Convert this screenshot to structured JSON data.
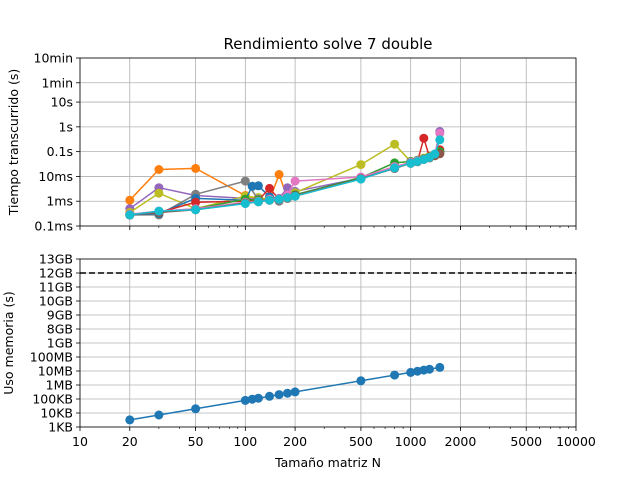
{
  "chart_data": [
    {
      "type": "line",
      "title": "Rendimiento solve 7 double",
      "xlabel": "",
      "ylabel": "Tiempo transcurrido (s)",
      "x_scale": "log",
      "y_scale": "log",
      "xlim": [
        10,
        10000
      ],
      "ylim": [
        0.0001,
        600
      ],
      "grid": true,
      "x_ticks": [
        {
          "value": 10,
          "label": "10"
        },
        {
          "value": 20,
          "label": "20"
        },
        {
          "value": 50,
          "label": "50"
        },
        {
          "value": 100,
          "label": "100"
        },
        {
          "value": 200,
          "label": "200"
        },
        {
          "value": 500,
          "label": "500"
        },
        {
          "value": 1000,
          "label": "1000"
        },
        {
          "value": 2000,
          "label": "2000"
        },
        {
          "value": 5000,
          "label": "5000"
        },
        {
          "value": 10000,
          "label": "10000"
        }
      ],
      "y_ticks": [
        {
          "value": 0.0001,
          "label": "0.1ms"
        },
        {
          "value": 0.001,
          "label": "1ms"
        },
        {
          "value": 0.01,
          "label": "10ms"
        },
        {
          "value": 0.1,
          "label": "0.1s"
        },
        {
          "value": 1,
          "label": "1s"
        },
        {
          "value": 10,
          "label": "10s"
        },
        {
          "value": 60,
          "label": "1min"
        },
        {
          "value": 600,
          "label": "10min"
        }
      ],
      "series": [
        {
          "color": "#ff7f0e",
          "x": [
            20,
            30,
            50,
            100,
            120,
            140,
            160,
            180,
            200,
            500,
            800,
            1000,
            1100,
            1200,
            1300,
            1400,
            1500
          ],
          "y": [
            0.0011,
            0.019,
            0.021,
            0.0017,
            0.0012,
            0.0011,
            0.012,
            0.0013,
            0.0017,
            0.0085,
            0.022,
            0.035,
            0.04,
            0.05,
            0.058,
            0.07,
            0.085
          ]
        },
        {
          "color": "#9467bd",
          "x": [
            20,
            30,
            50,
            100,
            120,
            140,
            160,
            180,
            200,
            500,
            800,
            1000,
            1100,
            1200,
            1300,
            1400,
            1500
          ],
          "y": [
            0.0005,
            0.0035,
            0.0017,
            0.0013,
            0.0012,
            0.0012,
            0.0013,
            0.0035,
            0.0025,
            0.0085,
            0.022,
            0.035,
            0.04,
            0.05,
            0.06,
            0.075,
            0.65
          ]
        },
        {
          "color": "#bcbd22",
          "x": [
            20,
            30,
            50,
            100,
            120,
            140,
            160,
            180,
            200,
            500,
            800,
            1000,
            1100,
            1200,
            1300,
            1400,
            1500
          ],
          "y": [
            0.00035,
            0.0021,
            0.0005,
            0.0016,
            0.0014,
            0.0012,
            0.0012,
            0.0015,
            0.0022,
            0.03,
            0.2,
            0.04,
            0.045,
            0.055,
            0.065,
            0.075,
            0.09
          ]
        },
        {
          "color": "#7f7f7f",
          "x": [
            20,
            30,
            50,
            100,
            120,
            140,
            160,
            180,
            200,
            500,
            800,
            1000,
            1100,
            1200,
            1300,
            1400,
            1500
          ],
          "y": [
            0.00028,
            0.00028,
            0.0019,
            0.0065,
            0.0012,
            0.0011,
            0.001,
            0.0013,
            0.0016,
            0.008,
            0.021,
            0.034,
            0.04,
            0.05,
            0.058,
            0.07,
            0.085
          ]
        },
        {
          "color": "#1f77b4",
          "x": [
            20,
            30,
            50,
            100,
            110,
            120,
            140,
            160,
            180,
            200,
            500,
            800,
            1000,
            1100,
            1200,
            1300,
            1400,
            1500
          ],
          "y": [
            0.00028,
            0.00032,
            0.0013,
            0.0011,
            0.004,
            0.0042,
            0.0015,
            0.0013,
            0.0016,
            0.0018,
            0.009,
            0.022,
            0.035,
            0.04,
            0.05,
            0.06,
            0.07,
            0.1
          ]
        },
        {
          "color": "#d62728",
          "x": [
            20,
            30,
            50,
            100,
            120,
            140,
            160,
            180,
            200,
            500,
            800,
            1000,
            1100,
            1200,
            1300,
            1400,
            1500
          ],
          "y": [
            0.0003,
            0.00035,
            0.0009,
            0.001,
            0.0011,
            0.0033,
            0.0012,
            0.0014,
            0.0017,
            0.0085,
            0.022,
            0.035,
            0.04,
            0.35,
            0.06,
            0.07,
            0.12
          ]
        },
        {
          "color": "#2ca02c",
          "x": [
            20,
            30,
            50,
            100,
            120,
            140,
            160,
            180,
            200,
            500,
            800,
            1000,
            1100,
            1200,
            1300,
            1400,
            1500
          ],
          "y": [
            0.00028,
            0.00038,
            0.0005,
            0.0012,
            0.0011,
            0.0012,
            0.0013,
            0.0015,
            0.0018,
            0.009,
            0.035,
            0.04,
            0.045,
            0.052,
            0.06,
            0.07,
            0.1
          ]
        },
        {
          "color": "#e377c2",
          "x": [
            20,
            30,
            50,
            100,
            120,
            140,
            160,
            180,
            200,
            500,
            800,
            1000,
            1100,
            1200,
            1300,
            1400,
            1500
          ],
          "y": [
            0.0003,
            0.0004,
            0.0005,
            0.0009,
            0.001,
            0.0012,
            0.0013,
            0.0018,
            0.0065,
            0.0095,
            0.025,
            0.037,
            0.043,
            0.05,
            0.058,
            0.08,
            0.55
          ]
        },
        {
          "color": "#8c564b",
          "x": [
            20,
            30,
            50,
            100,
            120,
            140,
            160,
            180,
            200,
            500,
            800,
            1000,
            1100,
            1200,
            1300,
            1400,
            1500
          ],
          "y": [
            0.00028,
            0.00035,
            0.00045,
            0.00085,
            0.00095,
            0.0011,
            0.0012,
            0.0014,
            0.0017,
            0.0082,
            0.021,
            0.034,
            0.039,
            0.048,
            0.056,
            0.068,
            0.082
          ]
        },
        {
          "color": "#17becf",
          "x": [
            20,
            30,
            50,
            100,
            120,
            140,
            160,
            180,
            200,
            500,
            800,
            1000,
            1100,
            1200,
            1300,
            1400,
            1500
          ],
          "y": [
            0.00028,
            0.0004,
            0.00045,
            0.0008,
            0.00095,
            0.0011,
            0.0012,
            0.0014,
            0.0016,
            0.0078,
            0.022,
            0.034,
            0.04,
            0.048,
            0.058,
            0.08,
            0.3
          ]
        }
      ]
    },
    {
      "type": "line",
      "title": "",
      "xlabel": "Tamaño matriz N",
      "ylabel": "Uso memoria (s)",
      "x_scale": "log",
      "y_scale": "custom",
      "xlim": [
        10,
        10000
      ],
      "grid": true,
      "y_ticks": [
        "1KB",
        "10KB",
        "100KB",
        "1MB",
        "10MB",
        "100MB",
        "1GB",
        "8GB",
        "9GB",
        "10GB",
        "11GB",
        "12GB",
        "13GB"
      ],
      "reference_line": {
        "value_label": "12GB",
        "style": "dashed",
        "color": "#000000"
      },
      "series": [
        {
          "color": "#1f77b4",
          "unit": "MB",
          "x": [
            20,
            30,
            50,
            100,
            110,
            120,
            140,
            160,
            180,
            200,
            500,
            800,
            1000,
            1100,
            1200,
            1300,
            1500
          ],
          "y": [
            0.0032,
            0.0072,
            0.02,
            0.08,
            0.097,
            0.115,
            0.157,
            0.205,
            0.26,
            0.32,
            2.0,
            5.12,
            8.0,
            9.68,
            11.52,
            13.52,
            18.0
          ]
        }
      ]
    }
  ]
}
